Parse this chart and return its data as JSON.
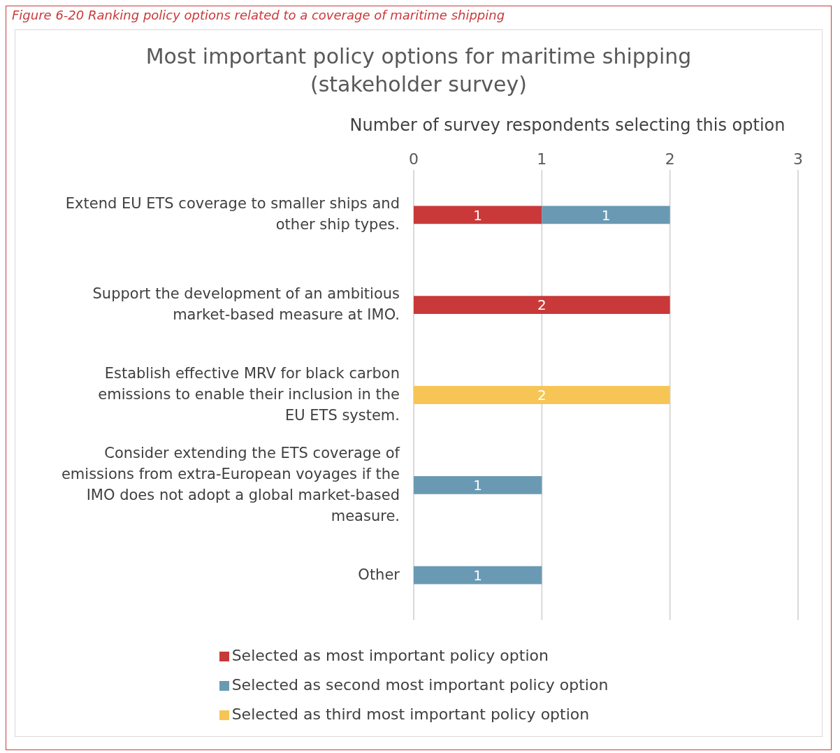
{
  "chart_data": {
    "type": "bar",
    "orientation": "horizontal",
    "stacked": true,
    "title": "Most important policy options for maritime shipping\n(stakeholder survey)",
    "xlabel": "Number of survey respondents selecting this option",
    "annotations": [
      "Figure 6-20 Ranking policy options related to a coverage of maritime shipping"
    ],
    "categories": [
      "Extend EU ETS coverage to smaller ships and other ship types.",
      "Support the development of an ambitious market-based measure at IMO.",
      "Establish effective MRV for black carbon emissions to enable their inclusion in the EU ETS system.",
      "Consider extending the ETS coverage of emissions from extra-European voyages if the IMO does not adopt a global market-based measure.",
      "Other"
    ],
    "series": [
      {
        "name": "Selected as most important policy option",
        "color": "#c9393a",
        "values": [
          1,
          2,
          null,
          null,
          null
        ]
      },
      {
        "name": "Selected as second most important policy option",
        "color": "#6a9ab3",
        "values": [
          1,
          null,
          null,
          1,
          1
        ]
      },
      {
        "name": "Selected as third most important policy option",
        "color": "#f6c555",
        "values": [
          null,
          null,
          2,
          null,
          null
        ]
      }
    ],
    "xlim": [
      0,
      3
    ],
    "xticks": [
      0,
      1,
      2,
      3
    ],
    "grid": "x",
    "legend": "bottom",
    "data_labels": true
  }
}
